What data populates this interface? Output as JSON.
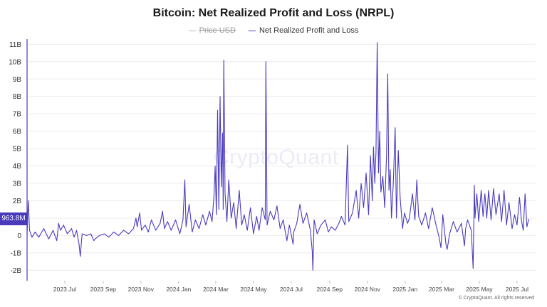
{
  "chart_data": {
    "type": "line",
    "title": "Bitcoin: Net Realized Profit and Loss (NRPL)",
    "legend": [
      {
        "name": "Price USD",
        "hidden": true
      },
      {
        "name": "Net Realized Profit and Loss",
        "hidden": false
      }
    ],
    "ylim": [
      -2.6,
      11.3
    ],
    "yticks": [
      {
        "value": 11,
        "label": "11B"
      },
      {
        "value": 10,
        "label": "10B"
      },
      {
        "value": 9,
        "label": "9B"
      },
      {
        "value": 8,
        "label": "8B"
      },
      {
        "value": 7,
        "label": "7B"
      },
      {
        "value": 6,
        "label": "6B"
      },
      {
        "value": 5,
        "label": "5B"
      },
      {
        "value": 4,
        "label": "4B"
      },
      {
        "value": 3,
        "label": "3B"
      },
      {
        "value": 2,
        "label": "2B"
      },
      {
        "value": 1,
        "label": "1B"
      },
      {
        "value": 0,
        "label": "0"
      },
      {
        "value": -1,
        "label": "-1B"
      },
      {
        "value": -2,
        "label": "-2B"
      }
    ],
    "xlim": [
      "2023-05-01",
      "2025-07-31"
    ],
    "xticks": [
      {
        "date": "2023-07-01",
        "label": "2023 Jul"
      },
      {
        "date": "2023-09-01",
        "label": "2023 Sep"
      },
      {
        "date": "2023-11-01",
        "label": "2023 Nov"
      },
      {
        "date": "2024-01-01",
        "label": "2024 Jan"
      },
      {
        "date": "2024-03-01",
        "label": "2024 Mar"
      },
      {
        "date": "2024-05-01",
        "label": "2024 May"
      },
      {
        "date": "2024-07-01",
        "label": "2024 Jul"
      },
      {
        "date": "2024-09-01",
        "label": "2024 Sep"
      },
      {
        "date": "2024-11-01",
        "label": "2024 Nov"
      },
      {
        "date": "2025-01-01",
        "label": "2025 Jan"
      },
      {
        "date": "2025-03-01",
        "label": "2025 Mar"
      },
      {
        "date": "2025-05-01",
        "label": "2025 May"
      },
      {
        "date": "2025-07-01",
        "label": "2025 Jul"
      }
    ],
    "series": [
      {
        "name": "Net Realized Profit and Loss",
        "unit": "B USD",
        "color": "#4a3bbd",
        "points": [
          [
            "2023-05-01",
            0.05
          ],
          [
            "2023-05-03",
            2.0
          ],
          [
            "2023-05-05",
            0.3
          ],
          [
            "2023-05-09",
            -0.1
          ],
          [
            "2023-05-14",
            0.2
          ],
          [
            "2023-05-20",
            -0.1
          ],
          [
            "2023-05-28",
            0.4
          ],
          [
            "2023-06-05",
            -0.2
          ],
          [
            "2023-06-12",
            0.3
          ],
          [
            "2023-06-18",
            -0.3
          ],
          [
            "2023-06-21",
            0.7
          ],
          [
            "2023-06-24",
            0.3
          ],
          [
            "2023-06-29",
            0.6
          ],
          [
            "2023-07-05",
            0.1
          ],
          [
            "2023-07-12",
            0.4
          ],
          [
            "2023-07-16",
            -0.1
          ],
          [
            "2023-07-20",
            0.3
          ],
          [
            "2023-07-24",
            -0.5
          ],
          [
            "2023-07-26",
            -1.2
          ],
          [
            "2023-07-29",
            0.1
          ],
          [
            "2023-08-05",
            0.0
          ],
          [
            "2023-08-12",
            0.1
          ],
          [
            "2023-08-17",
            -0.3
          ],
          [
            "2023-08-19",
            -0.2
          ],
          [
            "2023-08-26",
            0.0
          ],
          [
            "2023-09-03",
            0.1
          ],
          [
            "2023-09-10",
            -0.1
          ],
          [
            "2023-09-18",
            0.2
          ],
          [
            "2023-09-26",
            0.0
          ],
          [
            "2023-10-04",
            0.3
          ],
          [
            "2023-10-12",
            0.1
          ],
          [
            "2023-10-20",
            0.4
          ],
          [
            "2023-10-24",
            1.0
          ],
          [
            "2023-10-26",
            0.5
          ],
          [
            "2023-10-30",
            1.3
          ],
          [
            "2023-11-02",
            0.3
          ],
          [
            "2023-11-08",
            0.6
          ],
          [
            "2023-11-13",
            0.2
          ],
          [
            "2023-11-18",
            0.9
          ],
          [
            "2023-11-25",
            0.3
          ],
          [
            "2023-12-02",
            0.7
          ],
          [
            "2023-12-06",
            1.4
          ],
          [
            "2023-12-09",
            0.4
          ],
          [
            "2023-12-14",
            0.8
          ],
          [
            "2023-12-20",
            0.3
          ],
          [
            "2023-12-27",
            0.9
          ],
          [
            "2024-01-03",
            0.1
          ],
          [
            "2024-01-08",
            0.9
          ],
          [
            "2024-01-11",
            3.2
          ],
          [
            "2024-01-13",
            0.5
          ],
          [
            "2024-01-18",
            1.8
          ],
          [
            "2024-01-23",
            0.2
          ],
          [
            "2024-01-28",
            0.9
          ],
          [
            "2024-02-03",
            0.4
          ],
          [
            "2024-02-09",
            1.2
          ],
          [
            "2024-02-14",
            0.6
          ],
          [
            "2024-02-20",
            1.4
          ],
          [
            "2024-02-24",
            0.8
          ],
          [
            "2024-02-27",
            2.2
          ],
          [
            "2024-02-29",
            4.0
          ],
          [
            "2024-03-02",
            1.2
          ],
          [
            "2024-03-04",
            7.2
          ],
          [
            "2024-03-06",
            1.5
          ],
          [
            "2024-03-08",
            8.0
          ],
          [
            "2024-03-10",
            2.8
          ],
          [
            "2024-03-12",
            5.9
          ],
          [
            "2024-03-13",
            1.5
          ],
          [
            "2024-03-14",
            10.1
          ],
          [
            "2024-03-16",
            2.4
          ],
          [
            "2024-03-19",
            0.8
          ],
          [
            "2024-03-22",
            3.2
          ],
          [
            "2024-03-26",
            1.0
          ],
          [
            "2024-03-30",
            1.9
          ],
          [
            "2024-04-03",
            0.4
          ],
          [
            "2024-04-08",
            2.6
          ],
          [
            "2024-04-12",
            0.6
          ],
          [
            "2024-04-16",
            1.2
          ],
          [
            "2024-04-21",
            0.3
          ],
          [
            "2024-04-26",
            1.6
          ],
          [
            "2024-05-01",
            0.1
          ],
          [
            "2024-05-06",
            1.1
          ],
          [
            "2024-05-10",
            0.3
          ],
          [
            "2024-05-15",
            1.6
          ],
          [
            "2024-05-20",
            0.9
          ],
          [
            "2024-05-21",
            10.0
          ],
          [
            "2024-05-23",
            0.6
          ],
          [
            "2024-05-28",
            1.4
          ],
          [
            "2024-06-03",
            0.9
          ],
          [
            "2024-06-08",
            1.7
          ],
          [
            "2024-06-13",
            0.4
          ],
          [
            "2024-06-18",
            0.9
          ],
          [
            "2024-06-24",
            -0.3
          ],
          [
            "2024-06-28",
            0.6
          ],
          [
            "2024-07-04",
            -0.5
          ],
          [
            "2024-07-05",
            0.2
          ],
          [
            "2024-07-10",
            0.7
          ],
          [
            "2024-07-15",
            1.8
          ],
          [
            "2024-07-20",
            0.7
          ],
          [
            "2024-07-26",
            1.3
          ],
          [
            "2024-08-01",
            0.3
          ],
          [
            "2024-08-04",
            -0.9
          ],
          [
            "2024-08-05",
            -2.0
          ],
          [
            "2024-08-07",
            0.9
          ],
          [
            "2024-08-12",
            0.1
          ],
          [
            "2024-08-18",
            0.6
          ],
          [
            "2024-08-25",
            0.9
          ],
          [
            "2024-08-30",
            0.2
          ],
          [
            "2024-09-04",
            0.5
          ],
          [
            "2024-09-10",
            0.3
          ],
          [
            "2024-09-16",
            0.7
          ],
          [
            "2024-09-20",
            1.1
          ],
          [
            "2024-09-26",
            0.6
          ],
          [
            "2024-09-30",
            5.2
          ],
          [
            "2024-10-02",
            0.8
          ],
          [
            "2024-10-08",
            1.3
          ],
          [
            "2024-10-14",
            2.6
          ],
          [
            "2024-10-18",
            1.0
          ],
          [
            "2024-10-22",
            3.0
          ],
          [
            "2024-10-26",
            1.6
          ],
          [
            "2024-10-30",
            3.6
          ],
          [
            "2024-11-03",
            1.2
          ],
          [
            "2024-11-06",
            4.6
          ],
          [
            "2024-11-09",
            2.0
          ],
          [
            "2024-11-11",
            5.1
          ],
          [
            "2024-11-13",
            3.0
          ],
          [
            "2024-11-15",
            4.8
          ],
          [
            "2024-11-17",
            11.1
          ],
          [
            "2024-11-19",
            3.6
          ],
          [
            "2024-11-21",
            6.0
          ],
          [
            "2024-11-23",
            2.5
          ],
          [
            "2024-11-26",
            3.4
          ],
          [
            "2024-11-29",
            1.6
          ],
          [
            "2024-12-02",
            4.6
          ],
          [
            "2024-12-04",
            9.3
          ],
          [
            "2024-12-06",
            2.6
          ],
          [
            "2024-12-08",
            3.8
          ],
          [
            "2024-12-10",
            1.0
          ],
          [
            "2024-12-13",
            3.0
          ],
          [
            "2024-12-16",
            6.2
          ],
          [
            "2024-12-18",
            1.0
          ],
          [
            "2024-12-21",
            4.9
          ],
          [
            "2024-12-24",
            2.2
          ],
          [
            "2024-12-28",
            0.4
          ],
          [
            "2024-12-31",
            1.3
          ],
          [
            "2025-01-05",
            0.7
          ],
          [
            "2025-01-08",
            1.0
          ],
          [
            "2025-01-13",
            2.4
          ],
          [
            "2025-01-17",
            0.9
          ],
          [
            "2025-01-20",
            3.2
          ],
          [
            "2025-01-23",
            1.1
          ],
          [
            "2025-01-28",
            0.6
          ],
          [
            "2025-02-03",
            1.3
          ],
          [
            "2025-02-08",
            0.4
          ],
          [
            "2025-02-14",
            1.6
          ],
          [
            "2025-02-20",
            0.6
          ],
          [
            "2025-02-25",
            -0.1
          ],
          [
            "2025-02-28",
            -0.7
          ],
          [
            "2025-03-03",
            1.2
          ],
          [
            "2025-03-08",
            -0.5
          ],
          [
            "2025-03-10",
            -0.8
          ],
          [
            "2025-03-14",
            0.1
          ],
          [
            "2025-03-20",
            0.8
          ],
          [
            "2025-03-26",
            0.2
          ],
          [
            "2025-04-02",
            0.7
          ],
          [
            "2025-04-07",
            -0.6
          ],
          [
            "2025-04-09",
            0.4
          ],
          [
            "2025-04-12",
            0.9
          ],
          [
            "2025-04-18",
            0.3
          ],
          [
            "2025-04-21",
            -1.9
          ],
          [
            "2025-04-23",
            2.9
          ],
          [
            "2025-04-24",
            1.0
          ],
          [
            "2025-04-27",
            2.4
          ],
          [
            "2025-04-30",
            0.8
          ],
          [
            "2025-05-04",
            2.6
          ],
          [
            "2025-05-07",
            1.1
          ],
          [
            "2025-05-10",
            2.4
          ],
          [
            "2025-05-13",
            1.0
          ],
          [
            "2025-05-16",
            2.6
          ],
          [
            "2025-05-20",
            0.9
          ],
          [
            "2025-05-24",
            2.7
          ],
          [
            "2025-05-28",
            1.2
          ],
          [
            "2025-06-02",
            2.4
          ],
          [
            "2025-06-06",
            0.8
          ],
          [
            "2025-06-10",
            2.6
          ],
          [
            "2025-06-14",
            0.6
          ],
          [
            "2025-06-18",
            1.9
          ],
          [
            "2025-06-23",
            0.4
          ],
          [
            "2025-06-27",
            1.2
          ],
          [
            "2025-07-01",
            0.6
          ],
          [
            "2025-07-05",
            2.2
          ],
          [
            "2025-07-08",
            0.9
          ],
          [
            "2025-07-11",
            0.3
          ],
          [
            "2025-07-14",
            2.4
          ],
          [
            "2025-07-17",
            0.5
          ],
          [
            "2025-07-20",
            0.96
          ]
        ]
      }
    ],
    "current_value_label": "963.8M",
    "current_value": 0.9638,
    "watermark": "CryptoQuant",
    "copyright": "© CryptoQuant. All rights reserved"
  }
}
